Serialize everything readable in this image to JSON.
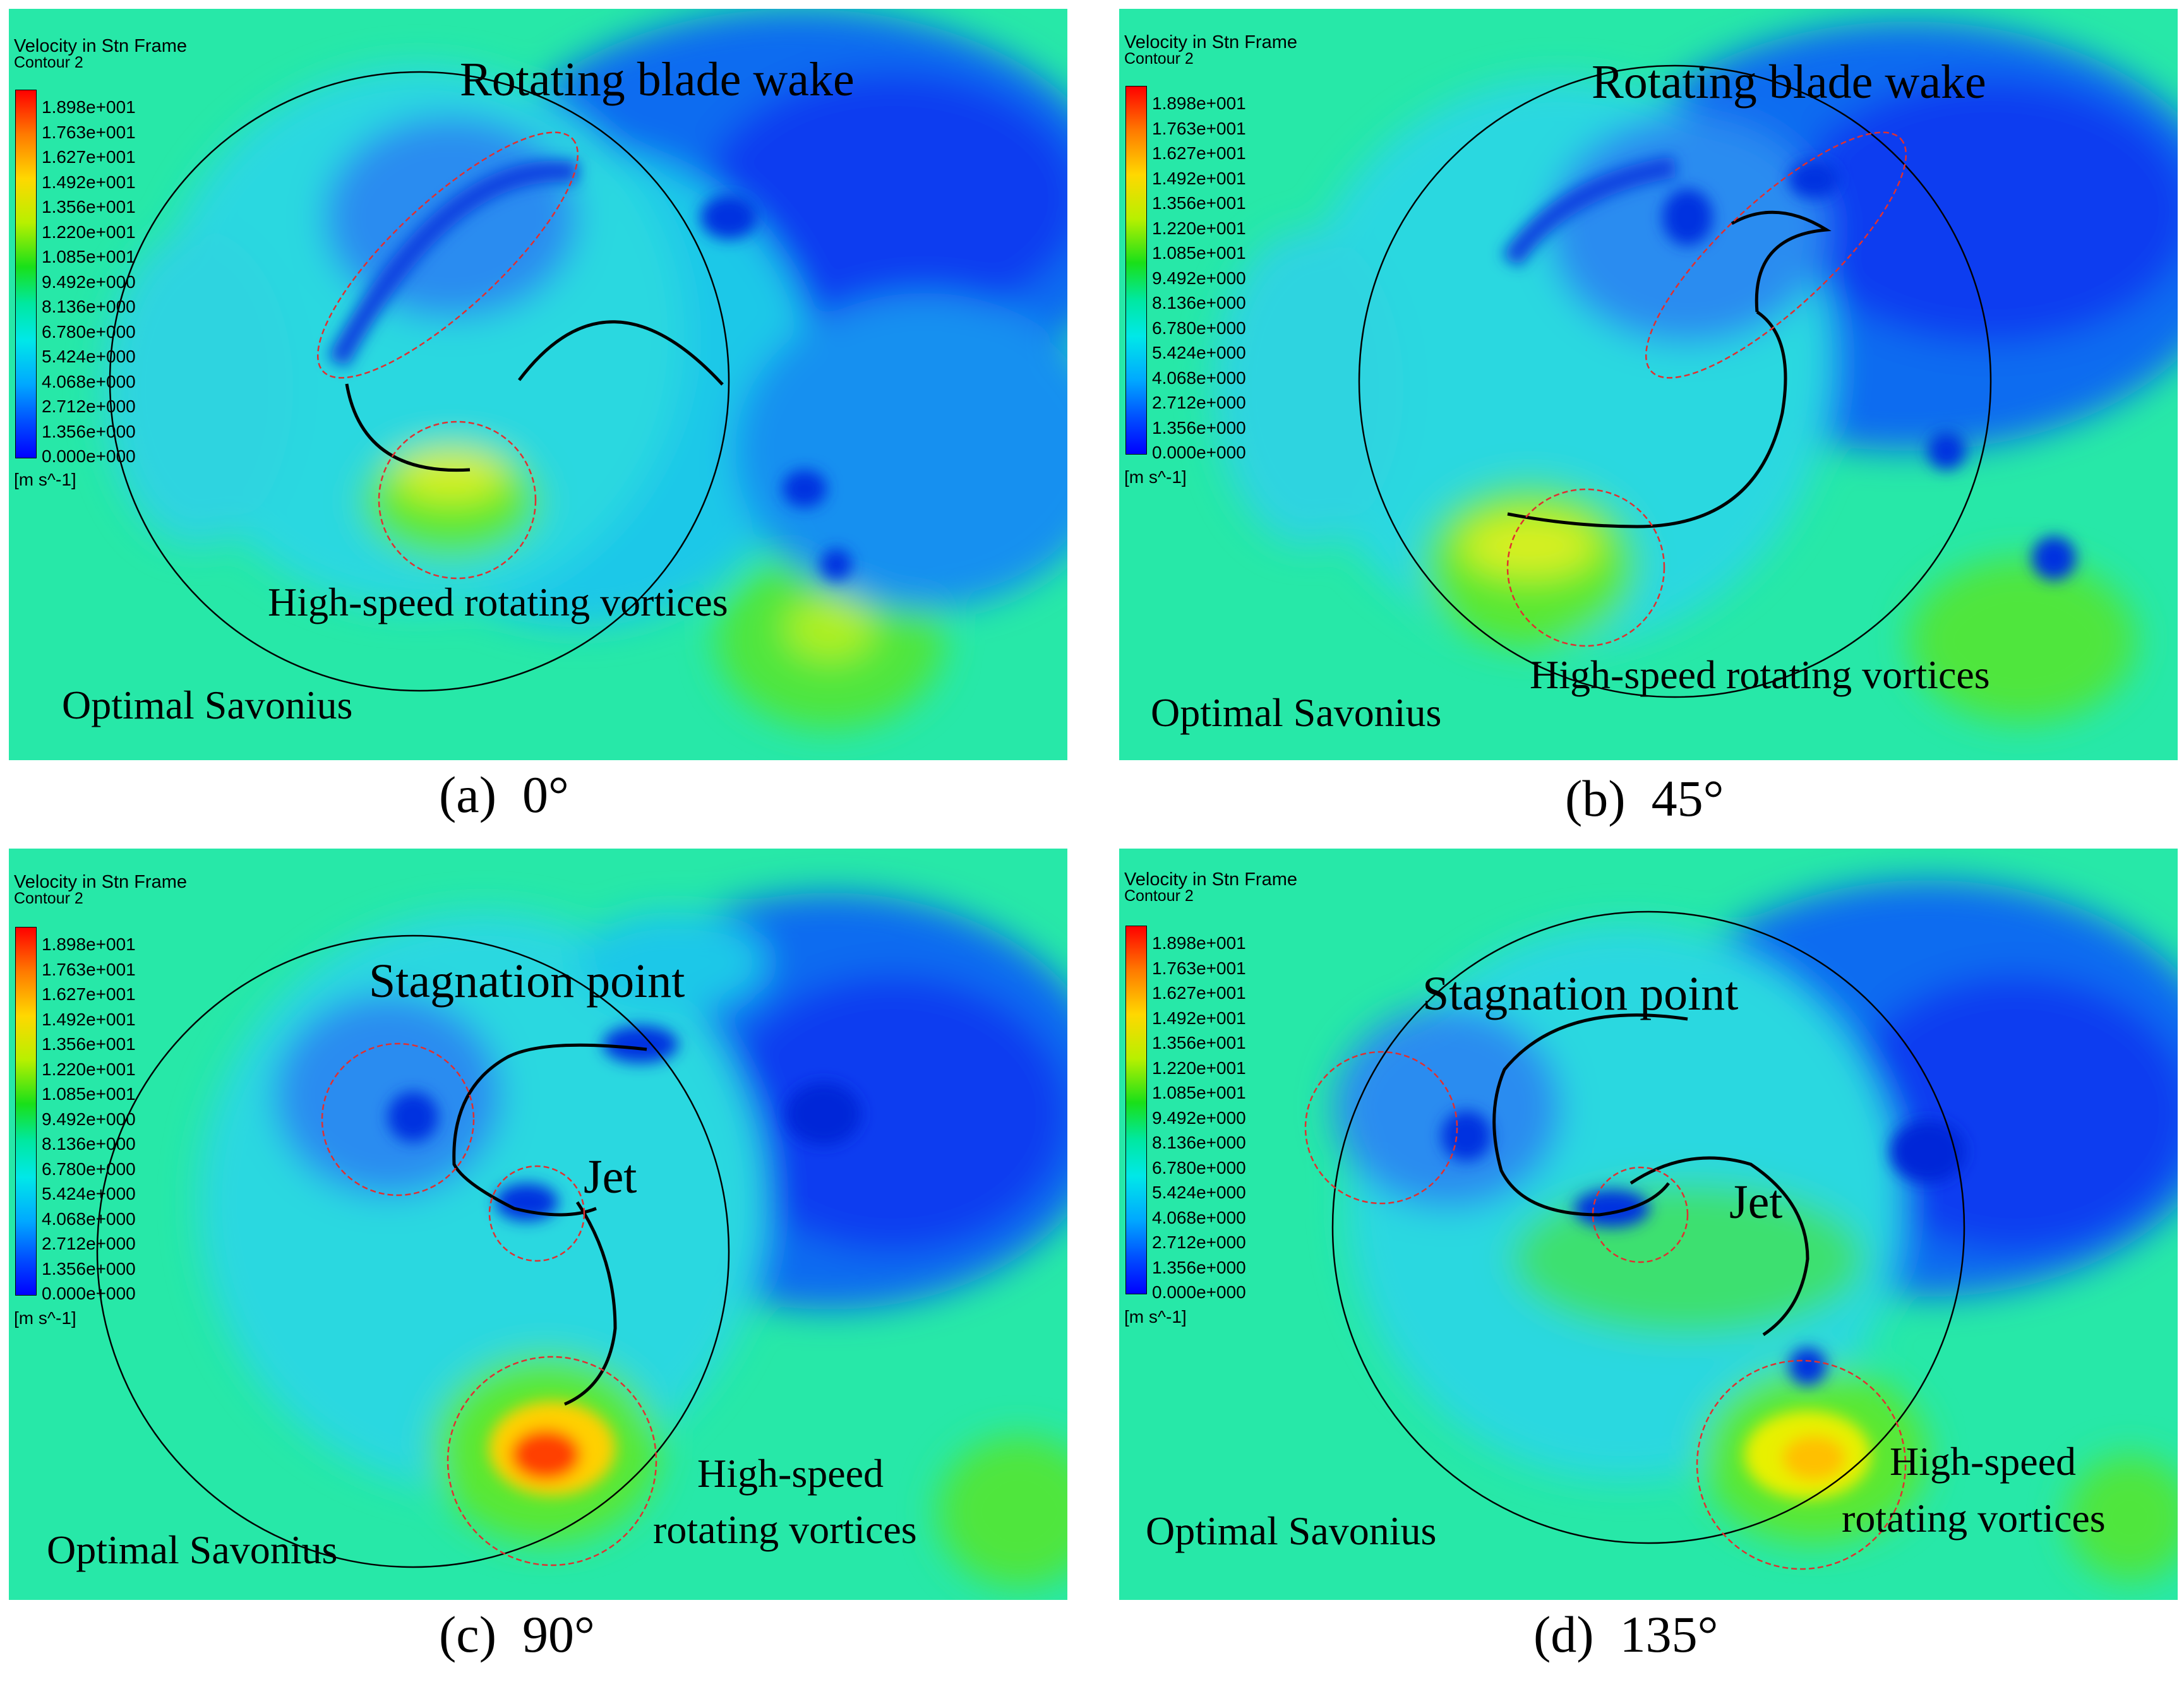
{
  "legend": {
    "title": "Velocity in Stn Frame",
    "subtitle": "Contour 2",
    "ticks": [
      "1.898e+001",
      "1.763e+001",
      "1.627e+001",
      "1.492e+001",
      "1.356e+001",
      "1.220e+001",
      "1.085e+001",
      "9.492e+000",
      "8.136e+000",
      "6.780e+000",
      "5.424e+000",
      "4.068e+000",
      "2.712e+000",
      "1.356e+000",
      "0.000e+000"
    ],
    "unit": "[m s^-1]"
  },
  "colors": {
    "background_field": "#23e6bf",
    "low_velocity": "#0a3ef0",
    "high_velocity": "#ff2a00",
    "annotation_circle": "#e03030",
    "rotor_outline": "#000000"
  },
  "panels": [
    {
      "id": "a",
      "caption_label": "(a)",
      "caption_angle": "0°",
      "annotations": [
        "Rotating blade wake",
        "High-speed rotating vortices",
        "Optimal Savonius"
      ]
    },
    {
      "id": "b",
      "caption_label": "(b)",
      "caption_angle": "45°",
      "annotations": [
        "Rotating blade wake",
        "High-speed rotating vortices",
        "Optimal Savonius"
      ]
    },
    {
      "id": "c",
      "caption_label": "(c)",
      "caption_angle": "90°",
      "annotations": [
        "Stagnation point",
        "Jet",
        "High-speed",
        "rotating vortices",
        "Optimal Savonius"
      ]
    },
    {
      "id": "d",
      "caption_label": "(d)",
      "caption_angle": "135°",
      "annotations": [
        "Stagnation point",
        "Jet",
        "High-speed",
        "rotating vortices",
        "Optimal Savonius"
      ]
    }
  ]
}
